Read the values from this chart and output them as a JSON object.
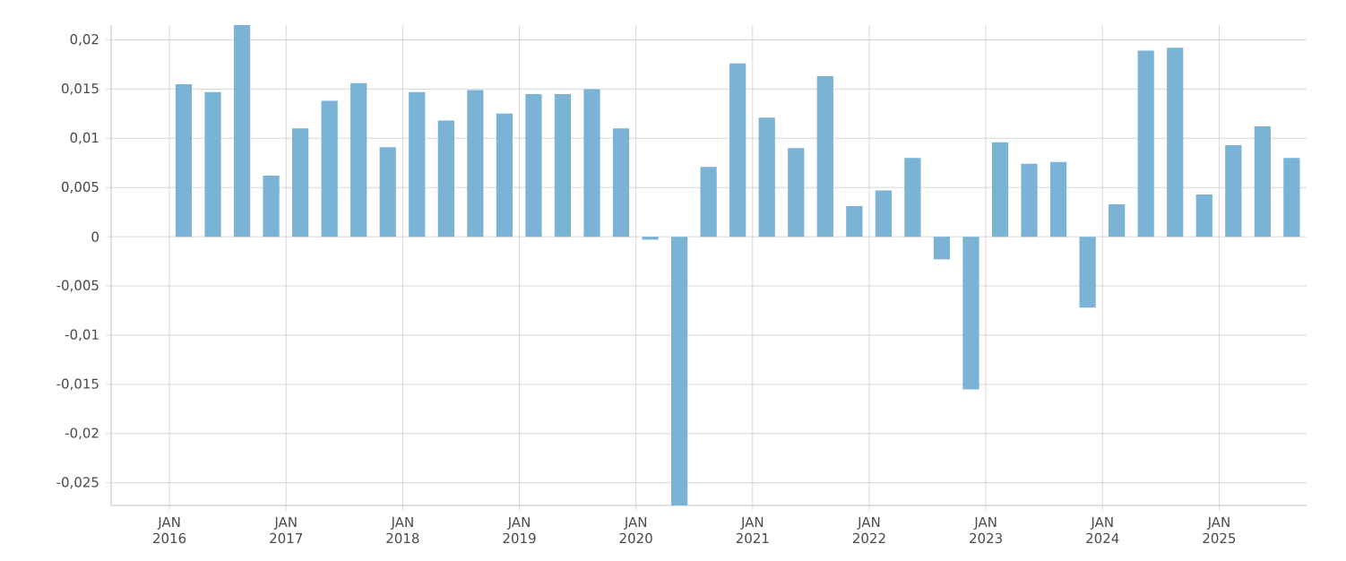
{
  "chart_data": {
    "type": "bar",
    "color": "#7ab3d6",
    "grid": true,
    "x": [
      "2016-02-15",
      "2016-05-15",
      "2016-08-15",
      "2016-11-15",
      "2017-02-15",
      "2017-05-15",
      "2017-08-15",
      "2017-11-15",
      "2018-02-15",
      "2018-05-15",
      "2018-08-15",
      "2018-11-15",
      "2019-02-15",
      "2019-05-15",
      "2019-08-15",
      "2019-11-15",
      "2020-02-15",
      "2020-05-15",
      "2020-08-15",
      "2020-11-15",
      "2021-02-15",
      "2021-05-15",
      "2021-08-15",
      "2021-11-15",
      "2022-02-15",
      "2022-05-15",
      "2022-08-15",
      "2022-11-15",
      "2023-02-15",
      "2023-05-15",
      "2023-08-15",
      "2023-11-15",
      "2024-02-15",
      "2024-05-15",
      "2024-08-15",
      "2024-11-15",
      "2025-02-15",
      "2025-05-15",
      "2025-08-15"
    ],
    "values": [
      0.0155,
      0.0147,
      0.0215,
      0.0062,
      0.011,
      0.0138,
      0.0156,
      0.0091,
      0.0147,
      0.0118,
      0.0149,
      0.0125,
      0.0145,
      0.0145,
      0.015,
      0.011,
      -0.0003,
      -0.0273,
      0.0071,
      0.0176,
      0.0121,
      0.009,
      0.0163,
      0.0031,
      0.0047,
      0.008,
      -0.0023,
      -0.0155,
      0.0096,
      0.0074,
      0.0076,
      -0.0072,
      0.0033,
      0.0189,
      0.0192,
      0.0043,
      0.0093,
      0.0112,
      0.008
    ],
    "xlim": [
      "2015-07-01",
      "2025-10-01"
    ],
    "xticks": [
      {
        "value": "2016-01-01",
        "label": "JAN 2016"
      },
      {
        "value": "2017-01-01",
        "label": "JAN 2017"
      },
      {
        "value": "2018-01-01",
        "label": "JAN 2018"
      },
      {
        "value": "2019-01-01",
        "label": "JAN 2019"
      },
      {
        "value": "2020-01-01",
        "label": "JAN 2020"
      },
      {
        "value": "2021-01-01",
        "label": "JAN 2021"
      },
      {
        "value": "2022-01-01",
        "label": "JAN 2022"
      },
      {
        "value": "2023-01-01",
        "label": "JAN 2023"
      },
      {
        "value": "2024-01-01",
        "label": "JAN 2024"
      },
      {
        "value": "2025-01-01",
        "label": "JAN 2025"
      }
    ],
    "ylim": [
      -0.0273,
      0.0215
    ],
    "yticks": [
      {
        "value": -0.025,
        "label": "-0,025"
      },
      {
        "value": -0.02,
        "label": "-0,02"
      },
      {
        "value": -0.015,
        "label": "-0,015"
      },
      {
        "value": -0.01,
        "label": "-0,01"
      },
      {
        "value": -0.005,
        "label": "-0,005"
      },
      {
        "value": 0,
        "label": "0"
      },
      {
        "value": 0.005,
        "label": "0,005"
      },
      {
        "value": 0.01,
        "label": "0,01"
      },
      {
        "value": 0.015,
        "label": "0,015"
      },
      {
        "value": 0.02,
        "label": "0,02"
      }
    ]
  }
}
